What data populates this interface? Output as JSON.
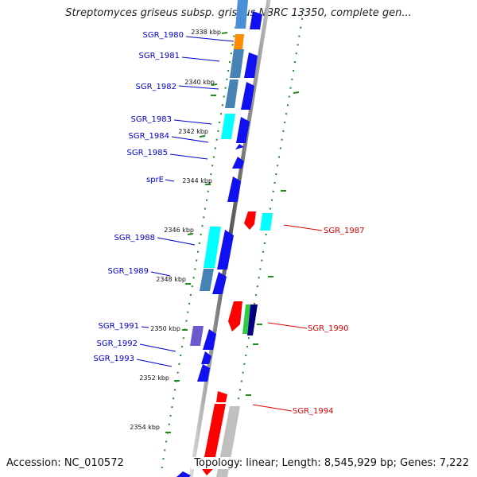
{
  "header": {
    "title": "Streptomyces griseus subsp. griseus NBRC 13350, complete gen..."
  },
  "footer": {
    "accession": "Accession: NC_010572",
    "summary": "Topology: linear; Length: 8,545,929 bp; Genes: 7,222"
  },
  "colors": {
    "forward_strand_label": "#0000cc",
    "reverse_strand_label": "#dd0000",
    "tick": "#228b22"
  },
  "ticks": [
    "2338 kbp",
    "2340 kbp",
    "2342 kbp",
    "2344 kbp",
    "2346 kbp",
    "2348 kbp",
    "2350 kbp",
    "2352 kbp",
    "2354 kbp"
  ],
  "genes_left": [
    "SGR_1980",
    "SGR_1981",
    "SGR_1982",
    "SGR_1983",
    "SGR_1984",
    "SGR_1985",
    "sprE",
    "SGR_1988",
    "SGR_1989",
    "SGR_1991",
    "SGR_1992",
    "SGR_1993"
  ],
  "genes_right": [
    "SGR_1987",
    "SGR_1990",
    "SGR_1994"
  ]
}
